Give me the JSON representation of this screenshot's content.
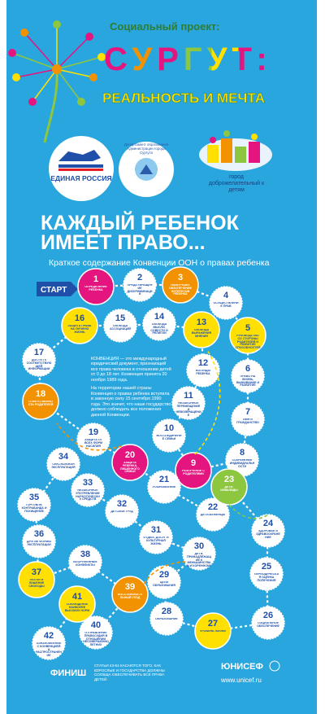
{
  "header": {
    "project": "Социальный проект:",
    "city": "СУРГУТ:",
    "slogan": "РЕАЛЬНОСТЬ И МЕЧТА"
  },
  "logos": {
    "party": "ЕДИНАЯ РОССИЯ",
    "department": "Департамент образования Администрации города Сургута",
    "city": "город доброжелательный к детям"
  },
  "heading": {
    "title_line1": "КАЖДЫЙ РЕБЕНОК",
    "title_line2": "ИМЕЕТ ПРАВО...",
    "subtitle": "Краткое содержание Конвенции ООН о правах ребенка"
  },
  "convention": {
    "paragraphs": [
      "КОНВЕНЦИЯ — это международный юридический документ, признающий все права человека в отношении детей от 0 до 18 лет. Конвенция принята 20 ноября 1989 года.",
      "На территории нашей страны Конвенция о правах ребенка вступила в законную силу 15 сентября 1990 года. Это значит, что наше государство должно соблюдать все положения данной Конвенции."
    ]
  },
  "board": {
    "start": "СТАРТ",
    "finish": "ФИНИШ",
    "note": "СТАТЬИ 43-54 КАСАЮТСЯ ТОГО, КАК ВЗРОСЛЫЕ И ГОСУДАРСТВА ДОЛЖНЫ СООБЩА ОБЕСПЕЧИВАТЬ ВСЕ ПРАВА ДЕТЕЙ.",
    "cells": [
      {
        "number": "1",
        "label": "Определение ребенка",
        "color": "#e4157f"
      },
      {
        "number": "2",
        "label": "Предотвращение дискриминации",
        "color": "#ffffff"
      },
      {
        "number": "3",
        "label": "Наилучшее обеспечение интересов ребенка",
        "color": "#f39200"
      },
      {
        "number": "4",
        "label": "Осуществление прав",
        "color": "#ffffff"
      },
      {
        "number": "5",
        "label": "Руководство со стороны родителей и развитие способностей ребенка",
        "color": "#ffe000"
      },
      {
        "number": "6",
        "label": "Право на жизнь, выживание и развитие",
        "color": "#ffffff"
      },
      {
        "number": "7",
        "label": "Имя и гражданство",
        "color": "#ffffff"
      },
      {
        "number": "8",
        "label": "Сохранение индивидуальности",
        "color": "#ffffff"
      },
      {
        "number": "9",
        "label": "Разлучение с родителями",
        "color": "#e4157f"
      },
      {
        "number": "10",
        "label": "Воссоединение семьи",
        "color": "#ffffff"
      },
      {
        "number": "11",
        "label": "Незаконное перемещение и невозвращение",
        "color": "#ffffff"
      },
      {
        "number": "12",
        "label": "Взгляды ребенка",
        "color": "#ffffff"
      },
      {
        "number": "13",
        "label": "Свобода выражения мнения",
        "color": "#ffe000"
      },
      {
        "number": "14",
        "label": "Свобода мысли, совести и религии",
        "color": "#ffffff"
      },
      {
        "number": "15",
        "label": "Свобода ассоциаций",
        "color": "#ffffff"
      },
      {
        "number": "16",
        "label": "Защита права на личную жизнь",
        "color": "#ffe000"
      },
      {
        "number": "17",
        "label": "Доступ к соответствующей информации",
        "color": "#ffffff"
      },
      {
        "number": "18",
        "label": "Ответственность родителей",
        "color": "#f39200"
      },
      {
        "number": "19",
        "label": "Защита от всех форм насилия",
        "color": "#ffffff"
      },
      {
        "number": "20",
        "label": "Защита ребенка, лишенного семьи",
        "color": "#e4157f"
      },
      {
        "number": "21",
        "label": "Усыновление",
        "color": "#ffffff"
      },
      {
        "number": "22",
        "label": "Дети-беженцы",
        "color": "#ffffff"
      },
      {
        "number": "23",
        "label": "Дети-инвалиды",
        "color": "#8dc63f"
      },
      {
        "number": "24",
        "label": "Здоровье и здравоохранение",
        "color": "#ffffff"
      },
      {
        "number": "25",
        "label": "Периодическая оценка попечения",
        "color": "#ffffff"
      },
      {
        "number": "26",
        "label": "Социальное обеспечение",
        "color": "#ffffff"
      },
      {
        "number": "27",
        "label": "Уровень жизни",
        "color": "#ffe000"
      },
      {
        "number": "28",
        "label": "Образование",
        "color": "#ffffff"
      },
      {
        "number": "29",
        "label": "Цели образования",
        "color": "#ffffff"
      },
      {
        "number": "30",
        "label": "Дети, принадлежащие к меньшинствам и коренному населению",
        "color": "#ffffff"
      },
      {
        "number": "31",
        "label": "Отдых, досуг и культурная жизнь",
        "color": "#ffffff"
      },
      {
        "number": "32",
        "label": "Детский труд",
        "color": "#ffffff"
      },
      {
        "number": "33",
        "label": "Незаконное употребление наркотических средств",
        "color": "#ffffff"
      },
      {
        "number": "34",
        "label": "Сексуальная эксплуатация",
        "color": "#ffffff"
      },
      {
        "number": "35",
        "label": "Торговля, контрабанда и похищение",
        "color": "#ffffff"
      },
      {
        "number": "36",
        "label": "Другие формы эксплуатации",
        "color": "#ffffff"
      },
      {
        "number": "37",
        "label": "Пытки и лишение свободы",
        "color": "#ffe000"
      },
      {
        "number": "38",
        "label": "Вооруженные конфликты",
        "color": "#ffffff"
      },
      {
        "number": "39",
        "label": "Восстановительный уход",
        "color": "#f39200"
      },
      {
        "number": "40",
        "label": "Отправление правосудия в отношении несовершеннолетних",
        "color": "#ffffff"
      },
      {
        "number": "41",
        "label": "Соблюдение наиболее высоких норм",
        "color": "#ffe000"
      },
      {
        "number": "42",
        "label": "Ознакомление с Конвенцией и распространение",
        "color": "#ffffff"
      }
    ]
  },
  "footer": {
    "org": "ЮНИСЕФ",
    "url": "www.unicef.ru"
  }
}
